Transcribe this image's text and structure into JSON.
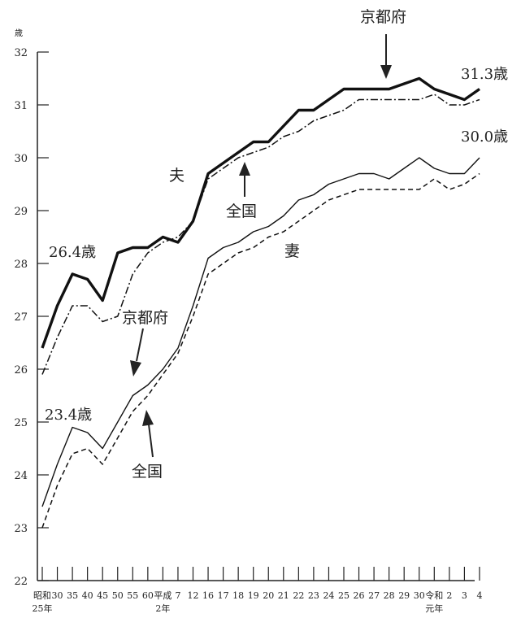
{
  "chart_data": {
    "type": "line",
    "y_unit": "歳",
    "ylim": [
      22,
      32
    ],
    "y_ticks": [
      "22",
      "23",
      "24",
      "25",
      "26",
      "27",
      "28",
      "29",
      "30",
      "31",
      "32"
    ],
    "x_tick_labels": [
      "昭和\n25年",
      "30",
      "35",
      "40",
      "45",
      "50",
      "55",
      "60",
      "平成\n2年",
      "7",
      "12",
      "16",
      "17",
      "18",
      "19",
      "20",
      "21",
      "22",
      "23",
      "24",
      "25",
      "26",
      "27",
      "28",
      "29",
      "30",
      "令和\n元年",
      "2",
      "3",
      "4"
    ],
    "series": [
      {
        "name": "夫 京都府",
        "values": [
          26.4,
          27.2,
          27.8,
          27.7,
          27.3,
          28.2,
          28.3,
          28.3,
          28.5,
          28.4,
          28.8,
          29.7,
          29.9,
          30.1,
          30.3,
          30.3,
          30.6,
          30.9,
          30.9,
          31.1,
          31.3,
          31.3,
          31.3,
          31.3,
          31.4,
          31.5,
          31.3,
          31.2,
          31.1,
          31.3
        ]
      },
      {
        "name": "夫 全国",
        "values": [
          25.9,
          26.6,
          27.2,
          27.2,
          26.9,
          27.0,
          27.8,
          28.2,
          28.4,
          28.5,
          28.8,
          29.6,
          29.8,
          30.0,
          30.1,
          30.2,
          30.4,
          30.5,
          30.7,
          30.8,
          30.9,
          31.1,
          31.1,
          31.1,
          31.1,
          31.1,
          31.2,
          31.0,
          31.0,
          31.1
        ]
      },
      {
        "name": "妻 京都府",
        "values": [
          23.4,
          24.2,
          24.9,
          24.8,
          24.5,
          25.0,
          25.5,
          25.7,
          26.0,
          26.4,
          27.2,
          28.1,
          28.3,
          28.4,
          28.6,
          28.7,
          28.9,
          29.2,
          29.3,
          29.5,
          29.6,
          29.7,
          29.7,
          29.6,
          29.8,
          30.0,
          29.8,
          29.7,
          29.7,
          30.0
        ]
      },
      {
        "name": "妻 全国",
        "values": [
          23.0,
          23.8,
          24.4,
          24.5,
          24.2,
          24.7,
          25.2,
          25.5,
          25.9,
          26.3,
          27.0,
          27.8,
          28.0,
          28.2,
          28.3,
          28.5,
          28.6,
          28.8,
          29.0,
          29.2,
          29.3,
          29.4,
          29.4,
          29.4,
          29.4,
          29.4,
          29.6,
          29.4,
          29.5,
          29.7
        ]
      }
    ],
    "annotations": {
      "husband_label": "夫",
      "wife_label": "妻",
      "kyoto_top": "京都府",
      "kyoto_wife": "京都府",
      "national_husband": "全国",
      "national_wife": "全国",
      "husband_start": "26.4歳",
      "husband_end": "31.3歳",
      "wife_start": "23.4歳",
      "wife_end": "30.0歳"
    }
  }
}
